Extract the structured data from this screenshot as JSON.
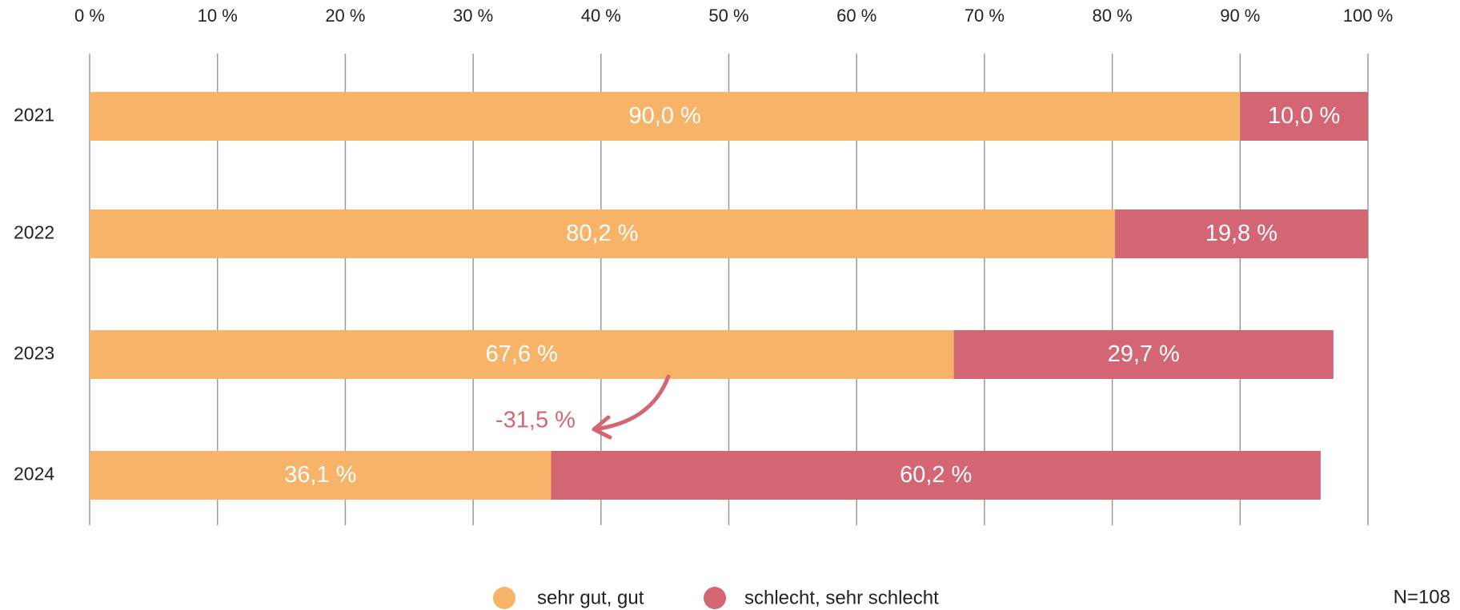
{
  "chart_data": {
    "type": "stacked-barh",
    "categories": [
      "2021",
      "2022",
      "2023",
      "2024"
    ],
    "series": [
      {
        "name": "sehr gut, gut",
        "color": "#f7b367",
        "values": [
          90.0,
          80.2,
          67.6,
          36.1
        ],
        "value_labels": [
          "90,0 %",
          "80,2 %",
          "67,6 %",
          "36,1 %"
        ]
      },
      {
        "name": "schlecht, sehr schlecht",
        "color": "#d46674",
        "values": [
          10.0,
          19.8,
          29.7,
          60.2
        ],
        "value_labels": [
          "10,0 %",
          "19,8 %",
          "29,7 %",
          "60,2 %"
        ]
      }
    ],
    "xlim": [
      0,
      100
    ],
    "xticks": [
      {
        "value": 0,
        "label": "0 %"
      },
      {
        "value": 10,
        "label": "10 %"
      },
      {
        "value": 20,
        "label": "20 %"
      },
      {
        "value": 30,
        "label": "30 %"
      },
      {
        "value": 40,
        "label": "40 %"
      },
      {
        "value": 50,
        "label": "50 %"
      },
      {
        "value": 60,
        "label": "60 %"
      },
      {
        "value": 70,
        "label": "70 %"
      },
      {
        "value": 80,
        "label": "80 %"
      },
      {
        "value": 90,
        "label": "90 %"
      },
      {
        "value": 100,
        "label": "100 %"
      }
    ],
    "grid": true,
    "annotation": "-31,5 %",
    "note": "N=108"
  }
}
